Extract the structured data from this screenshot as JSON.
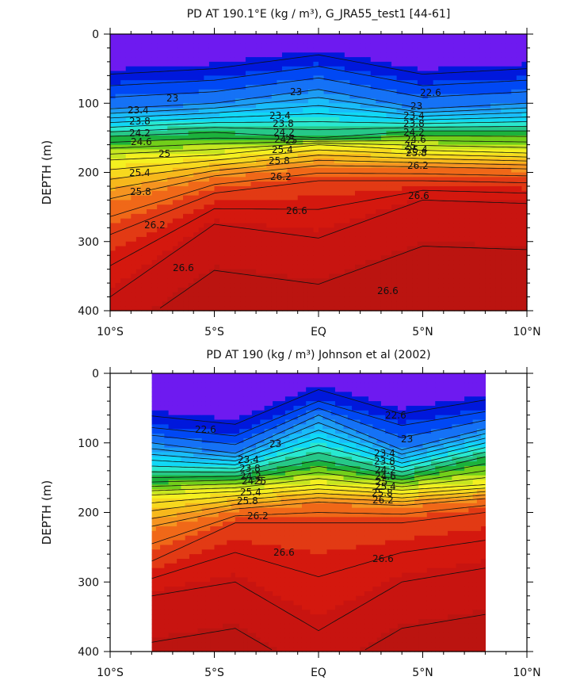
{
  "chart_data": [
    {
      "type": "heatmap",
      "title": "PD AT 190.1°E (kg / m³), G_JRA55_test1 [44-61]",
      "ylabel": "DEPTH (m)",
      "xlabel": "",
      "x_ticks": [
        "10°S",
        "5°S",
        "EQ",
        "5°N",
        "10°N"
      ],
      "y_ticks": [
        "0",
        "100",
        "200",
        "300",
        "400"
      ],
      "xlim": [
        -10,
        10
      ],
      "ylim": [
        400,
        0
      ],
      "data_extent_lat": [
        -10,
        10
      ],
      "contour_interval": 0.2,
      "contour_labels": [
        "23",
        "23",
        "22.6",
        "23",
        "23.4",
        "23.8",
        "24.2",
        "24.6",
        "25",
        "25.4",
        "25.8",
        "26.2",
        "26.6",
        "23.4",
        "23.8",
        "24.2",
        "24.5",
        "25",
        "25.4",
        "25.8",
        "26.2",
        "26.6",
        "23.4",
        "23.8",
        "24.2",
        "24.6",
        "25",
        "25.4",
        "25.8",
        "26.2",
        "26.6",
        "26.6"
      ],
      "series": [
        {
          "name": "",
          "isopycnals": [
            {
              "value": 23.0,
              "lat": [
                -10,
                -5,
                0,
                5,
                10
              ],
              "depth": [
                108,
                100,
                80,
                108,
                100
              ]
            },
            {
              "value": 24.2,
              "lat": [
                -10,
                -5,
                0,
                5,
                10
              ],
              "depth": [
                148,
                142,
                150,
                140,
                140
              ]
            },
            {
              "value": 25.0,
              "lat": [
                -10,
                -5,
                0,
                5,
                10
              ],
              "depth": [
                182,
                175,
                160,
                168,
                172
              ]
            },
            {
              "value": 25.8,
              "lat": [
                -10,
                -5,
                0,
                5,
                10
              ],
              "depth": [
                238,
                205,
                190,
                192,
                195
              ]
            },
            {
              "value": 26.2,
              "lat": [
                -10,
                -5,
                0,
                5,
                10
              ],
              "depth": [
                290,
                230,
                212,
                212,
                215
              ]
            },
            {
              "value": 26.6,
              "lat": [
                -10,
                -5,
                0,
                5,
                10
              ],
              "depth": [
                380,
                275,
                295,
                240,
                245
              ]
            }
          ]
        }
      ]
    },
    {
      "type": "heatmap",
      "title": "PD AT 190 (kg / m³) Johnson et al (2002)",
      "ylabel": "DEPTH (m)",
      "xlabel": "",
      "x_ticks": [
        "10°S",
        "5°S",
        "EQ",
        "5°N",
        "10°N"
      ],
      "y_ticks": [
        "0",
        "100",
        "200",
        "300",
        "400"
      ],
      "xlim": [
        -10,
        10
      ],
      "ylim": [
        400,
        0
      ],
      "data_extent_lat": [
        -8,
        8
      ],
      "contour_interval": 0.2,
      "contour_labels": [
        "22.6",
        "22.6",
        "23",
        "23",
        "23.4",
        "23.8",
        "24.2",
        "24.5",
        "25",
        "25.4",
        "25.8",
        "26.2",
        "26.6",
        "23.4",
        "23.8",
        "24.2",
        "24.6",
        "25",
        "25.4",
        "25.8",
        "26.2",
        "26.6"
      ],
      "series": [
        {
          "name": "",
          "isopycnals": [
            {
              "value": 22.6,
              "lat": [
                -8,
                -4,
                0,
                4,
                8
              ],
              "depth": [
                78,
                90,
                40,
                75,
                55
              ]
            },
            {
              "value": 23.0,
              "lat": [
                -8,
                -4,
                0,
                4,
                8
              ],
              "depth": [
                100,
                115,
                60,
                110,
                80
              ]
            },
            {
              "value": 24.2,
              "lat": [
                -8,
                -4,
                0,
                4,
                8
              ],
              "depth": [
                150,
                148,
                125,
                148,
                120
              ]
            },
            {
              "value": 25.0,
              "lat": [
                -8,
                -4,
                0,
                4,
                8
              ],
              "depth": [
                175,
                170,
                160,
                168,
                160
              ]
            },
            {
              "value": 25.8,
              "lat": [
                -8,
                -4,
                0,
                4,
                8
              ],
              "depth": [
                220,
                195,
                185,
                190,
                180
              ]
            },
            {
              "value": 26.2,
              "lat": [
                -8,
                -4,
                0,
                4,
                8
              ],
              "depth": [
                270,
                215,
                215,
                215,
                200
              ]
            },
            {
              "value": 26.6,
              "lat": [
                -8,
                -4,
                0,
                4,
                8
              ],
              "depth": [
                320,
                300,
                370,
                300,
                280
              ]
            }
          ]
        }
      ]
    }
  ]
}
